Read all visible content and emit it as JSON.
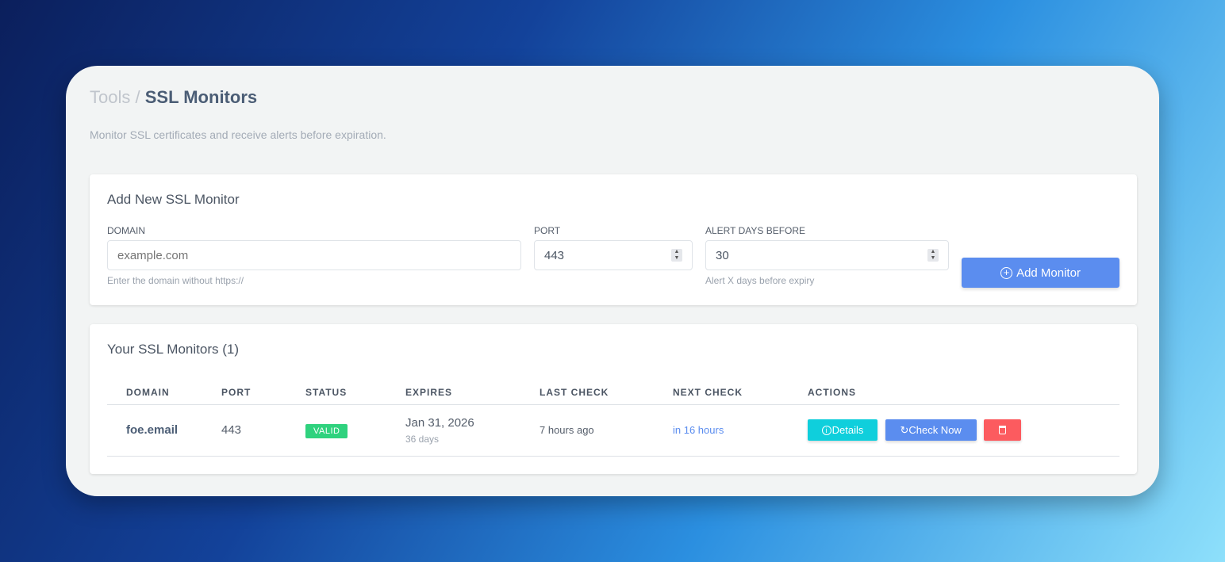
{
  "breadcrumb": {
    "parent": "Tools",
    "separator": "/",
    "current": "SSL Monitors"
  },
  "subtitle": "Monitor SSL certificates and receive alerts before expiration.",
  "add_form": {
    "title": "Add New SSL Monitor",
    "domain": {
      "label": "DOMAIN",
      "placeholder": "example.com",
      "value": "",
      "help": "Enter the domain without https://"
    },
    "port": {
      "label": "PORT",
      "value": "443"
    },
    "alert_days": {
      "label": "ALERT DAYS BEFORE",
      "value": "30",
      "help": "Alert X days before expiry"
    },
    "submit_label": "Add Monitor"
  },
  "monitors": {
    "title": "Your SSL Monitors (1)",
    "columns": [
      "DOMAIN",
      "PORT",
      "STATUS",
      "EXPIRES",
      "LAST CHECK",
      "NEXT CHECK",
      "ACTIONS"
    ],
    "rows": [
      {
        "domain": "foe.email",
        "port": "443",
        "status": "VALID",
        "expires": "Jan 31, 2026",
        "expires_in": "36 days",
        "last_check": "7 hours ago",
        "next_check": "in 16 hours",
        "details_label": "Details",
        "check_label": "Check Now"
      }
    ]
  },
  "colors": {
    "primary": "#5b8def",
    "info": "#0fcfdc",
    "danger": "#fc5b5f",
    "success": "#2fd27e"
  }
}
